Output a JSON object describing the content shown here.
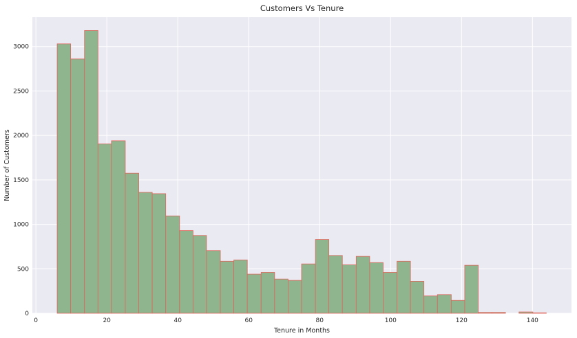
{
  "chart_data": {
    "type": "bar",
    "title": "Customers Vs Tenure",
    "xlabel": "Tenure in Months",
    "ylabel": "Number of Customers",
    "xlim": [
      -1,
      151
    ],
    "ylim": [
      0,
      3330
    ],
    "x_ticks": [
      0,
      20,
      40,
      60,
      80,
      100,
      120,
      140
    ],
    "y_ticks": [
      0,
      500,
      1000,
      1500,
      2000,
      2500,
      3000
    ],
    "grid": true,
    "colors": {
      "background": "#eaeaf2",
      "grid": "#ffffff",
      "bar_fill": "#8fb58e",
      "bar_edge": "#e0655a"
    },
    "bins": [
      {
        "x0": 6.0,
        "x1": 9.8,
        "value": 3030
      },
      {
        "x0": 9.8,
        "x1": 13.7,
        "value": 2860
      },
      {
        "x0": 13.7,
        "x1": 17.5,
        "value": 3180
      },
      {
        "x0": 17.5,
        "x1": 21.3,
        "value": 1905
      },
      {
        "x0": 21.3,
        "x1": 25.2,
        "value": 1940
      },
      {
        "x0": 25.2,
        "x1": 29.0,
        "value": 1575
      },
      {
        "x0": 29.0,
        "x1": 32.8,
        "value": 1360
      },
      {
        "x0": 32.8,
        "x1": 36.6,
        "value": 1345
      },
      {
        "x0": 36.6,
        "x1": 40.5,
        "value": 1095
      },
      {
        "x0": 40.5,
        "x1": 44.3,
        "value": 930
      },
      {
        "x0": 44.3,
        "x1": 48.1,
        "value": 875
      },
      {
        "x0": 48.1,
        "x1": 52.0,
        "value": 705
      },
      {
        "x0": 52.0,
        "x1": 55.8,
        "value": 585
      },
      {
        "x0": 55.8,
        "x1": 59.6,
        "value": 600
      },
      {
        "x0": 59.6,
        "x1": 63.5,
        "value": 440
      },
      {
        "x0": 63.5,
        "x1": 67.3,
        "value": 460
      },
      {
        "x0": 67.3,
        "x1": 71.1,
        "value": 385
      },
      {
        "x0": 71.1,
        "x1": 74.9,
        "value": 370
      },
      {
        "x0": 74.9,
        "x1": 78.8,
        "value": 555
      },
      {
        "x0": 78.8,
        "x1": 82.6,
        "value": 830
      },
      {
        "x0": 82.6,
        "x1": 86.4,
        "value": 650
      },
      {
        "x0": 86.4,
        "x1": 90.3,
        "value": 545
      },
      {
        "x0": 90.3,
        "x1": 94.1,
        "value": 640
      },
      {
        "x0": 94.1,
        "x1": 97.9,
        "value": 570
      },
      {
        "x0": 97.9,
        "x1": 101.8,
        "value": 460
      },
      {
        "x0": 101.8,
        "x1": 105.6,
        "value": 585
      },
      {
        "x0": 105.6,
        "x1": 109.4,
        "value": 360
      },
      {
        "x0": 109.4,
        "x1": 113.2,
        "value": 195
      },
      {
        "x0": 113.2,
        "x1": 117.1,
        "value": 210
      },
      {
        "x0": 117.1,
        "x1": 120.9,
        "value": 145
      },
      {
        "x0": 120.9,
        "x1": 124.7,
        "value": 540
      },
      {
        "x0": 124.7,
        "x1": 128.6,
        "value": 10
      },
      {
        "x0": 128.6,
        "x1": 132.4,
        "value": 10
      },
      {
        "x0": 132.4,
        "x1": 136.2,
        "value": 0
      },
      {
        "x0": 136.2,
        "x1": 140.1,
        "value": 15
      },
      {
        "x0": 140.1,
        "x1": 143.9,
        "value": 5
      }
    ]
  }
}
